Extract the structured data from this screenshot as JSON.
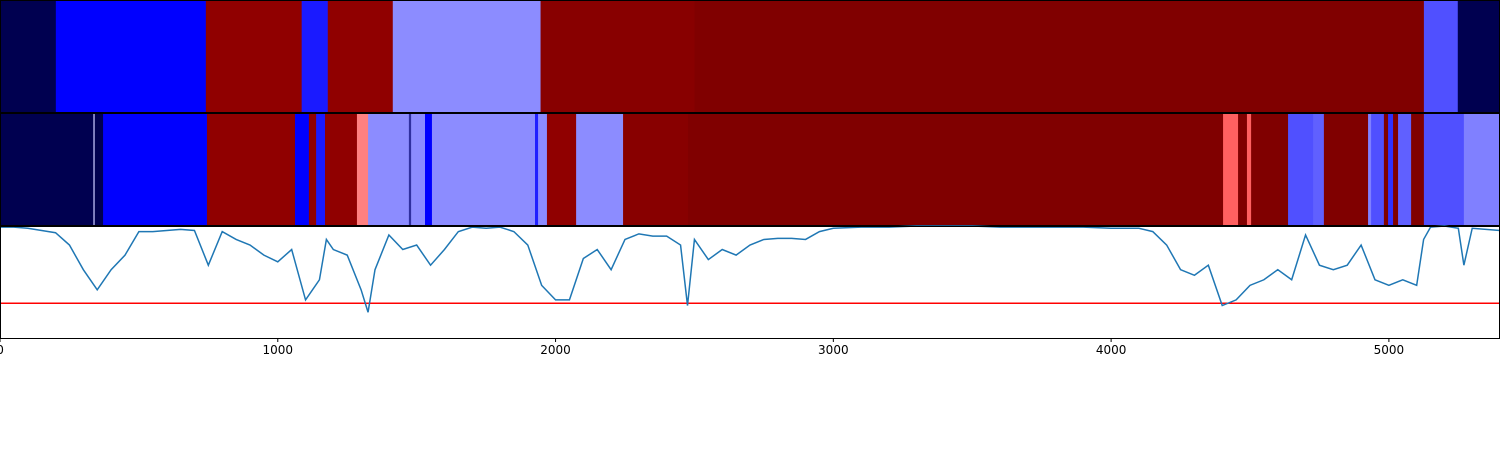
{
  "chart_data": [
    {
      "type": "segments",
      "xlim": [
        0,
        5400
      ],
      "edges": [
        0,
        201,
        741,
        1086,
        1180,
        1414,
        1946,
        2500,
        5126,
        5248,
        5400
      ],
      "colors": [
        "#000050",
        "#0000ff",
        "#900000",
        "#1a1aff",
        "#900000",
        "#8c8cff",
        "#880000",
        "#800000",
        "#5050ff",
        "#000050"
      ]
    },
    {
      "type": "segments",
      "xlim": [
        0,
        5400
      ],
      "edges": [
        0,
        335,
        342,
        371,
        745,
        1062,
        1112,
        1138,
        1170,
        1285,
        1325,
        1472,
        1480,
        1530,
        1555,
        1926,
        1937,
        1969,
        2074,
        2243,
        2477,
        4403,
        4457,
        4489,
        4504,
        4637,
        4727,
        4766,
        4925,
        4936,
        4982,
        4997,
        5015,
        5033,
        5080,
        5126,
        5270,
        5400
      ],
      "colors": [
        "#000050",
        "#8080c0",
        "#000050",
        "#0000ff",
        "#900000",
        "#0000ff",
        "#900000",
        "#1a1aff",
        "#900000",
        "#ff8080",
        "#8c8cff",
        "#3030a0",
        "#8c8cff",
        "#0000ff",
        "#8c8cff",
        "#2020ff",
        "#8c8cff",
        "#900000",
        "#8c8cff",
        "#880000",
        "#800000",
        "#ff6060",
        "#800000",
        "#ff6060",
        "#800000",
        "#5050ff",
        "#6060ff",
        "#800000",
        "#8080ff",
        "#5050ff",
        "#800000",
        "#3030ff",
        "#800000",
        "#6060ff",
        "#800000",
        "#5050ff",
        "#8080ff"
      ]
    },
    {
      "type": "line",
      "xlim": [
        0,
        5400
      ],
      "ylim": [
        0,
        1
      ],
      "color": "#1f77b4",
      "xticks": [
        0,
        1000,
        2000,
        3000,
        4000,
        5000
      ],
      "threshold": 0.31,
      "threshold_color": "#ff0000",
      "x": [
        0,
        50,
        100,
        150,
        200,
        250,
        300,
        350,
        400,
        450,
        500,
        550,
        600,
        650,
        700,
        750,
        800,
        850,
        900,
        950,
        1000,
        1050,
        1100,
        1125,
        1150,
        1175,
        1200,
        1250,
        1300,
        1325,
        1350,
        1400,
        1450,
        1500,
        1550,
        1600,
        1650,
        1700,
        1750,
        1800,
        1850,
        1900,
        1950,
        2000,
        2050,
        2100,
        2150,
        2200,
        2250,
        2300,
        2350,
        2400,
        2450,
        2475,
        2500,
        2550,
        2600,
        2650,
        2700,
        2750,
        2800,
        2850,
        2900,
        2950,
        3000,
        3100,
        3200,
        3300,
        3400,
        3500,
        3600,
        3700,
        3800,
        3900,
        4000,
        4100,
        4150,
        4200,
        4250,
        4300,
        4350,
        4400,
        4450,
        4500,
        4550,
        4600,
        4650,
        4700,
        4750,
        4800,
        4850,
        4900,
        4950,
        5000,
        5050,
        5100,
        5125,
        5150,
        5200,
        5250,
        5270,
        5300,
        5400
      ],
      "values": [
        0.99,
        0.99,
        0.98,
        0.96,
        0.94,
        0.83,
        0.61,
        0.43,
        0.61,
        0.74,
        0.95,
        0.95,
        0.96,
        0.97,
        0.96,
        0.65,
        0.95,
        0.88,
        0.83,
        0.74,
        0.68,
        0.79,
        0.34,
        0.43,
        0.52,
        0.88,
        0.79,
        0.74,
        0.43,
        0.23,
        0.61,
        0.92,
        0.79,
        0.83,
        0.65,
        0.79,
        0.95,
        0.99,
        0.98,
        0.99,
        0.95,
        0.83,
        0.47,
        0.34,
        0.34,
        0.71,
        0.79,
        0.61,
        0.88,
        0.93,
        0.91,
        0.91,
        0.83,
        0.29,
        0.88,
        0.7,
        0.79,
        0.74,
        0.83,
        0.88,
        0.89,
        0.89,
        0.88,
        0.95,
        0.98,
        0.99,
        0.99,
        1,
        1,
        1,
        0.99,
        0.99,
        0.99,
        0.99,
        0.98,
        0.98,
        0.95,
        0.83,
        0.61,
        0.56,
        0.65,
        0.29,
        0.34,
        0.47,
        0.52,
        0.61,
        0.52,
        0.92,
        0.65,
        0.61,
        0.65,
        0.83,
        0.52,
        0.47,
        0.52,
        0.47,
        0.88,
        0.99,
        1,
        0.98,
        0.65,
        0.98,
        0.96
      ]
    }
  ]
}
